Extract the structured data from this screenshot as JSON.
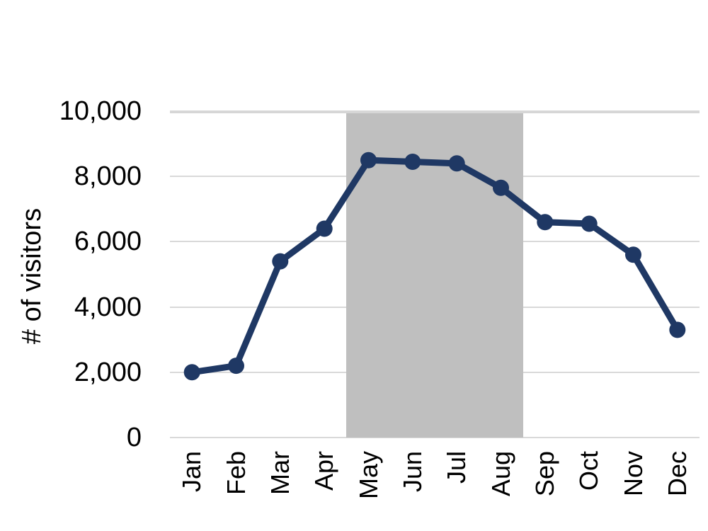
{
  "chart_data": {
    "type": "line",
    "title": "",
    "xlabel": "",
    "ylabel": "# of visitors",
    "categories": [
      "Jan",
      "Feb",
      "Mar",
      "Apr",
      "May",
      "Jun",
      "Jul",
      "Aug",
      "Sep",
      "Oct",
      "Nov",
      "Dec"
    ],
    "series": [
      {
        "name": "# of visitors",
        "values": [
          2000,
          2200,
          5400,
          6400,
          8500,
          8450,
          8400,
          7650,
          6600,
          6550,
          5600,
          3300
        ]
      }
    ],
    "ylim": [
      0,
      10000
    ],
    "ytick_step": 2000,
    "ytick_labels": [
      "0",
      "2,000",
      "4,000",
      "6,000",
      "8,000",
      "10,000"
    ],
    "grid": true,
    "legend": false,
    "shaded_region": {
      "from_category": "May",
      "to_category": "Aug"
    }
  },
  "colors": {
    "line": "#1f3864",
    "marker": "#1f3864",
    "shaded_region": "#bfbfbf",
    "gridline": "#d9d9d9",
    "axis_line": "#d6d6d6",
    "text": "#000000",
    "background": "#ffffff"
  }
}
